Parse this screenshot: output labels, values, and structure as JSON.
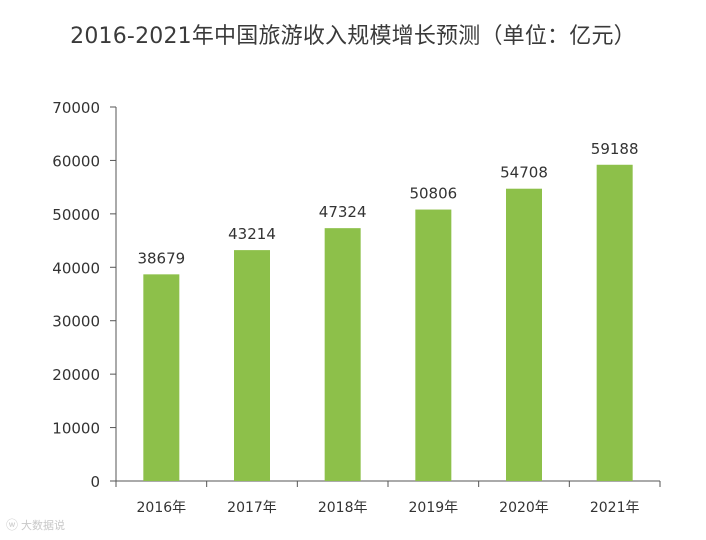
{
  "chart_data": {
    "type": "bar",
    "title": "2016-2021年中国旅游收入规模增长预测（单位：亿元）",
    "categories": [
      "2016年",
      "2017年",
      "2018年",
      "2019年",
      "2020年",
      "2021年"
    ],
    "values": [
      38679,
      43214,
      47324,
      50806,
      54708,
      59188
    ],
    "ylim": [
      0,
      70000
    ],
    "yticks": [
      0,
      10000,
      20000,
      30000,
      40000,
      50000,
      60000,
      70000
    ],
    "bar_color": "#8dc04a",
    "grid": false,
    "data_labels": true
  },
  "watermark": {
    "text": "大数据说"
  }
}
